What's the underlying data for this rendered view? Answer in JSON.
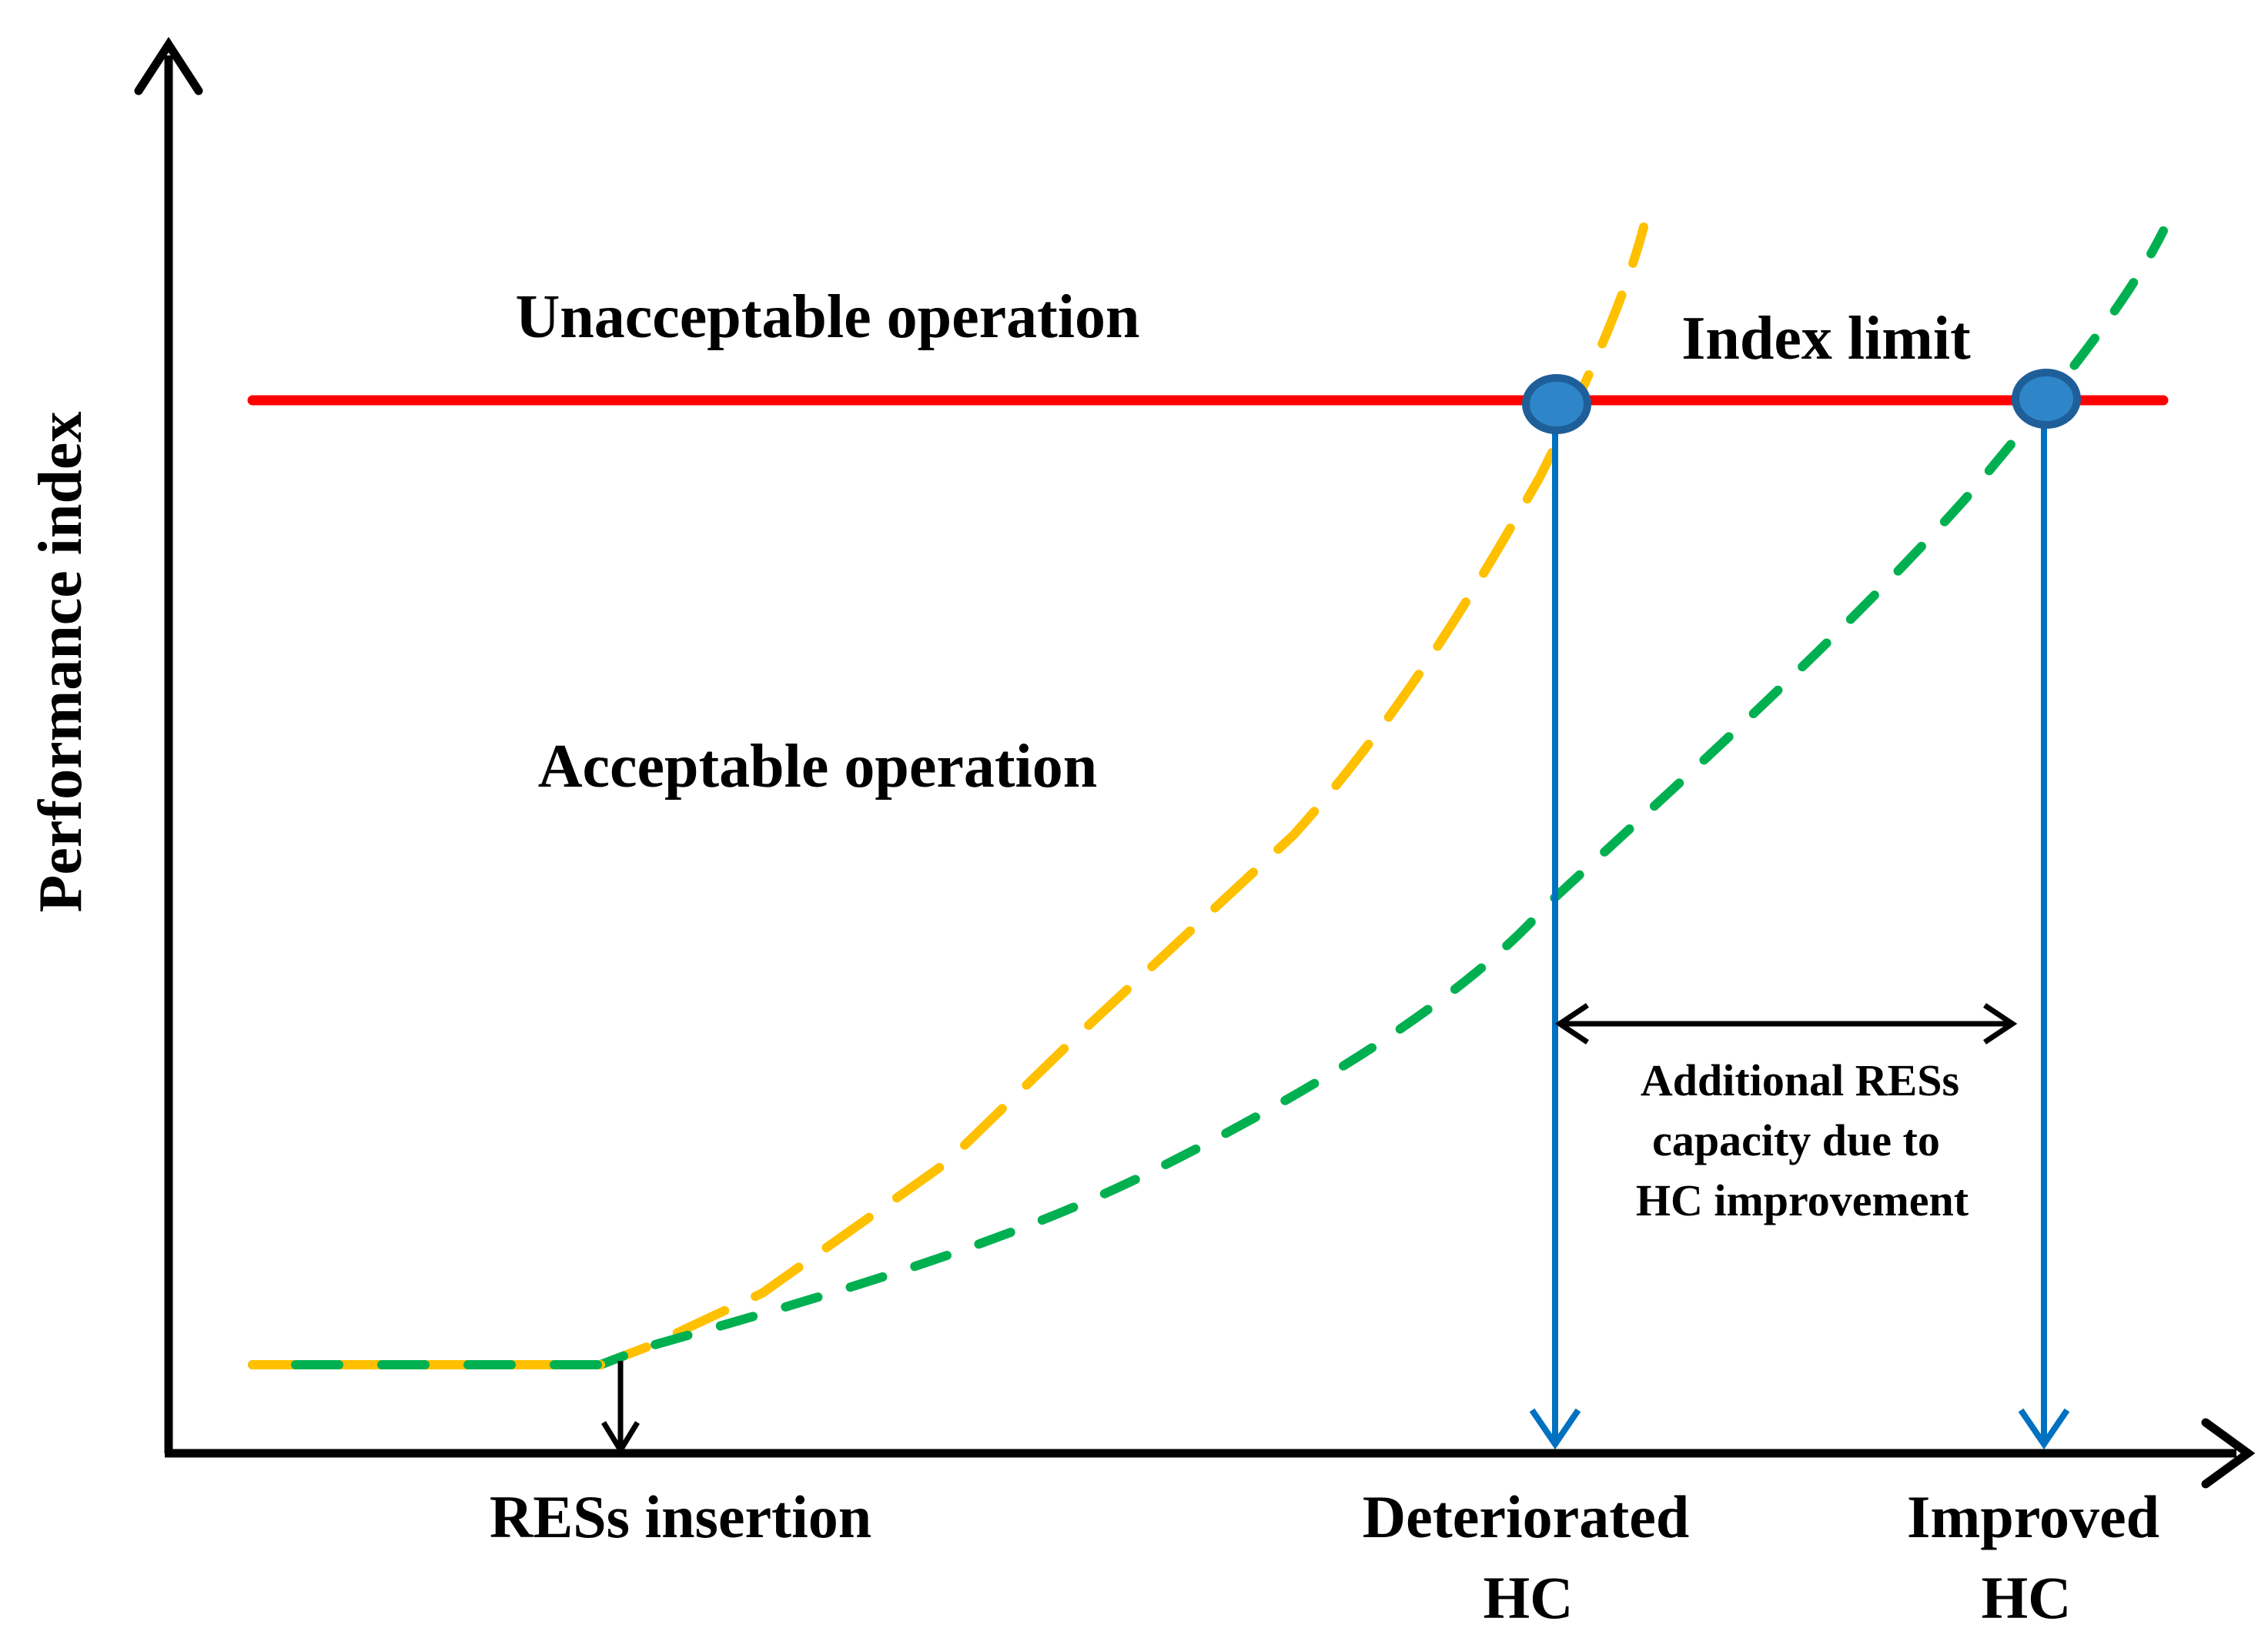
{
  "axes": {
    "y_label": "Performance index"
  },
  "regions": {
    "unacceptable": "Unacceptable operation",
    "acceptable": "Acceptable operation"
  },
  "index_limit_label": "Index limit",
  "x_labels": {
    "res_insertion": "RESs insertion",
    "deteriorated_line1": "Deteriorated",
    "deteriorated_line2": "HC",
    "improved_line1": "Improved",
    "improved_line2": "HC"
  },
  "annotation": {
    "line1": "Additional RESs",
    "line2": "capacity due to",
    "line3": "HC improvement"
  },
  "colors": {
    "axis": "#000000",
    "index_limit": "#ff0000",
    "deteriorated_curve": "#ffc000",
    "improved_curve": "#00b050",
    "drop_lines": "#0070c0",
    "marker_fill": "#2e86c9",
    "marker_stroke": "#1f5f99"
  }
}
